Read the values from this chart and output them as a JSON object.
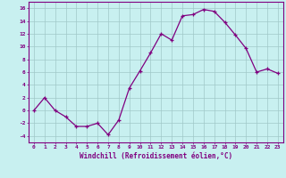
{
  "x": [
    0,
    1,
    2,
    3,
    4,
    5,
    6,
    7,
    8,
    9,
    10,
    11,
    12,
    13,
    14,
    15,
    16,
    17,
    18,
    19,
    20,
    21,
    22,
    23
  ],
  "y": [
    0,
    2,
    0,
    -1,
    -2.5,
    -2.5,
    -2,
    -3.8,
    -1.5,
    3.5,
    6.2,
    9.0,
    12.0,
    11.0,
    14.8,
    15.0,
    15.8,
    15.5,
    13.8,
    11.8,
    9.7,
    6.0,
    6.5,
    5.8
  ],
  "line_color": "#800080",
  "marker": "+",
  "marker_size": 3,
  "bg_color": "#c8f0f0",
  "grid_color": "#a0c8c8",
  "spine_color": "#800080",
  "tick_color": "#800080",
  "label_color": "#800080",
  "xlabel": "Windchill (Refroidissement éolien,°C)",
  "ylim": [
    -5,
    17
  ],
  "xlim": [
    -0.5,
    23.5
  ],
  "yticks": [
    -4,
    -2,
    0,
    2,
    4,
    6,
    8,
    10,
    12,
    14,
    16
  ],
  "xticks": [
    0,
    1,
    2,
    3,
    4,
    5,
    6,
    7,
    8,
    9,
    10,
    11,
    12,
    13,
    14,
    15,
    16,
    17,
    18,
    19,
    20,
    21,
    22,
    23
  ]
}
